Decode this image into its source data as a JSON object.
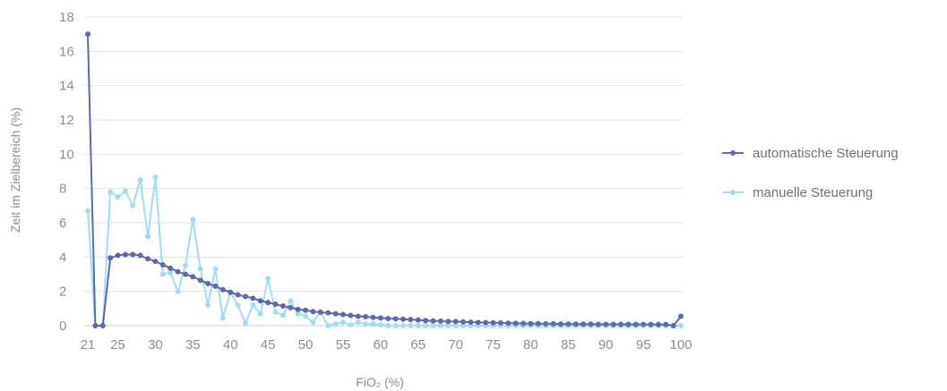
{
  "chart_data": {
    "type": "line",
    "xlabel": "FiO₂ (%)",
    "ylabel": "Zeit im Zielbereich (%)",
    "ylim": [
      0,
      18
    ],
    "yticks": [
      0,
      2,
      4,
      6,
      8,
      10,
      12,
      14,
      16,
      18
    ],
    "xticks": [
      21,
      25,
      30,
      35,
      40,
      45,
      50,
      55,
      60,
      65,
      70,
      75,
      80,
      85,
      90,
      95,
      100
    ],
    "xlim": [
      21,
      100
    ],
    "grid": "horizontal",
    "legend_position": "right",
    "x": [
      21,
      22,
      23,
      24,
      25,
      26,
      27,
      28,
      29,
      30,
      31,
      32,
      33,
      34,
      35,
      36,
      37,
      38,
      39,
      40,
      41,
      42,
      43,
      44,
      45,
      46,
      47,
      48,
      49,
      50,
      51,
      52,
      53,
      54,
      55,
      56,
      57,
      58,
      59,
      60,
      61,
      62,
      63,
      64,
      65,
      66,
      67,
      68,
      69,
      70,
      71,
      72,
      73,
      74,
      75,
      76,
      77,
      78,
      79,
      80,
      81,
      82,
      83,
      84,
      85,
      86,
      87,
      88,
      89,
      90,
      91,
      92,
      93,
      94,
      95,
      96,
      97,
      98,
      99,
      100
    ],
    "series": [
      {
        "name": "automatische Steuerung",
        "color": "#5b6aae",
        "values": [
          17.0,
          0.0,
          0.0,
          3.95,
          4.1,
          4.15,
          4.15,
          4.1,
          3.9,
          3.75,
          3.55,
          3.35,
          3.15,
          3.0,
          2.85,
          2.65,
          2.45,
          2.3,
          2.1,
          1.95,
          1.8,
          1.7,
          1.6,
          1.45,
          1.35,
          1.25,
          1.15,
          1.05,
          0.95,
          0.9,
          0.82,
          0.78,
          0.75,
          0.7,
          0.65,
          0.6,
          0.55,
          0.52,
          0.48,
          0.45,
          0.42,
          0.4,
          0.38,
          0.36,
          0.33,
          0.3,
          0.28,
          0.27,
          0.25,
          0.24,
          0.22,
          0.2,
          0.19,
          0.18,
          0.17,
          0.16,
          0.15,
          0.14,
          0.13,
          0.12,
          0.12,
          0.11,
          0.11,
          0.1,
          0.1,
          0.09,
          0.09,
          0.09,
          0.08,
          0.08,
          0.08,
          0.08,
          0.08,
          0.08,
          0.08,
          0.07,
          0.07,
          0.07,
          0.0,
          0.55
        ]
      },
      {
        "name": "manuelle Steuerung",
        "color": "#a3dcf0",
        "values": [
          6.7,
          0.0,
          0.0,
          7.8,
          7.5,
          7.85,
          7.0,
          8.5,
          5.2,
          8.65,
          3.0,
          3.1,
          2.0,
          3.5,
          6.2,
          3.3,
          1.2,
          3.3,
          0.45,
          1.95,
          1.2,
          0.15,
          1.2,
          0.7,
          2.75,
          0.8,
          0.6,
          1.45,
          0.7,
          0.55,
          0.2,
          0.8,
          0.0,
          0.1,
          0.2,
          0.05,
          0.2,
          0.1,
          0.1,
          0.05,
          0.0,
          0.0,
          0.0,
          0.0,
          0.0,
          0.0,
          0.0,
          0.0,
          0.0,
          0.0,
          0.0,
          0.0,
          0.0,
          0.0,
          0.0,
          0.0,
          0.0,
          0.0,
          0.0,
          0.0,
          0.0,
          0.0,
          0.0,
          0.0,
          0.0,
          0.0,
          0.0,
          0.0,
          0.0,
          0.0,
          0.0,
          0.0,
          0.0,
          0.0,
          0.0,
          0.0,
          0.0,
          0.0,
          0.0,
          0.0
        ]
      }
    ]
  }
}
